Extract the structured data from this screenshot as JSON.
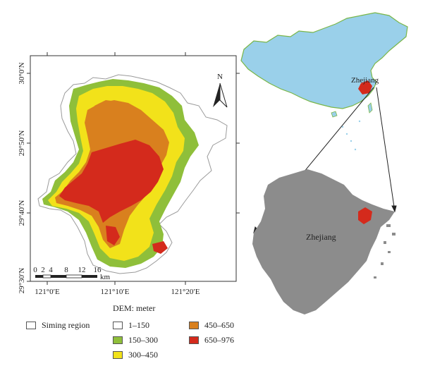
{
  "map": {
    "lat_labels": [
      "30°0′N",
      "29°50′N",
      "29°40′N",
      "29°30′N"
    ],
    "lon_labels": [
      "121°0′E",
      "121°10′E",
      "121°20′E"
    ],
    "north_label": "N",
    "scale_numbers": [
      "0",
      "2",
      "4",
      "8",
      "12",
      "16"
    ],
    "scale_unit": "km"
  },
  "inset": {
    "china_label": "Zhejiang",
    "zhejiang_label": "Zhejiang"
  },
  "legend": {
    "title": "DEM: meter",
    "items": [
      {
        "label": "Siming region",
        "color": "#ffffff"
      },
      {
        "label": "1–150",
        "color": "#ffffff"
      },
      {
        "label": "150–300",
        "color": "#8fbf3a"
      },
      {
        "label": "300–450",
        "color": "#f2e21a"
      },
      {
        "label": "450–650",
        "color": "#d9801e"
      },
      {
        "label": "650–976",
        "color": "#d42a1c"
      }
    ]
  },
  "colors": {
    "china_fill": "#9ad0ea",
    "china_border": "#7ab648",
    "zhejiang_fill": "#8c8c8c",
    "siming_fill": "#d42a1c"
  }
}
